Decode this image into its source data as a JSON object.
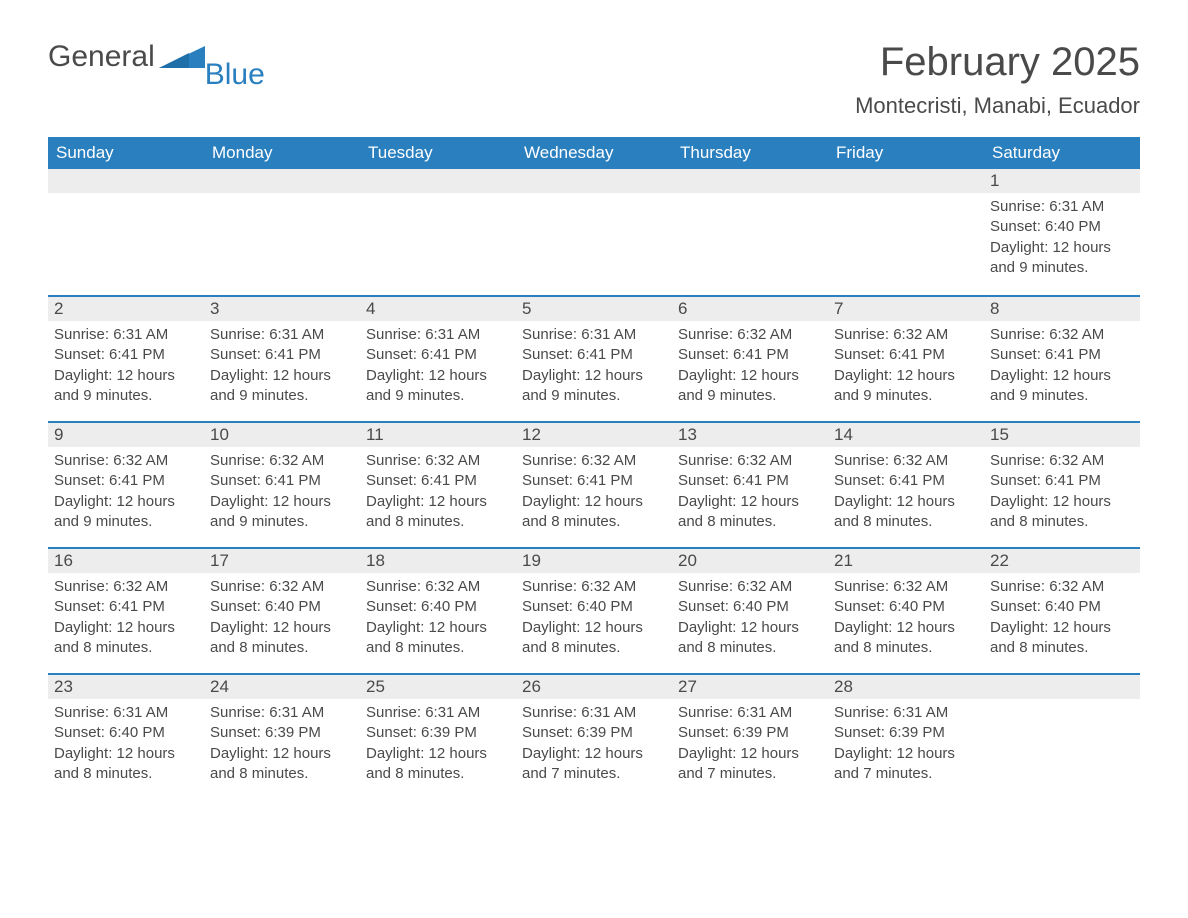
{
  "brand": {
    "part1": "General",
    "part2": "Blue"
  },
  "title": "February 2025",
  "location": "Montecristi, Manabi, Ecuador",
  "colors": {
    "header_bg": "#2a7fbf",
    "header_text": "#ffffff",
    "daybar_bg": "#ededed",
    "border": "#2a7fbf",
    "body_text": "#4a4a4a",
    "brand_gray": "#4a4a4a",
    "brand_blue": "#2a7fbf",
    "page_bg": "#ffffff"
  },
  "typography": {
    "title_fontsize": 40,
    "location_fontsize": 22,
    "dayheader_fontsize": 17,
    "cell_fontsize": 15,
    "logo_fontsize": 30
  },
  "labels": {
    "sunrise": "Sunrise:",
    "sunset": "Sunset:",
    "daylight": "Daylight:"
  },
  "day_names": [
    "Sunday",
    "Monday",
    "Tuesday",
    "Wednesday",
    "Thursday",
    "Friday",
    "Saturday"
  ],
  "weeks": [
    [
      null,
      null,
      null,
      null,
      null,
      null,
      {
        "day": "1",
        "sunrise": "6:31 AM",
        "sunset": "6:40 PM",
        "daylight_l1": "12 hours",
        "daylight_l2": "and 9 minutes."
      }
    ],
    [
      {
        "day": "2",
        "sunrise": "6:31 AM",
        "sunset": "6:41 PM",
        "daylight_l1": "12 hours",
        "daylight_l2": "and 9 minutes."
      },
      {
        "day": "3",
        "sunrise": "6:31 AM",
        "sunset": "6:41 PM",
        "daylight_l1": "12 hours",
        "daylight_l2": "and 9 minutes."
      },
      {
        "day": "4",
        "sunrise": "6:31 AM",
        "sunset": "6:41 PM",
        "daylight_l1": "12 hours",
        "daylight_l2": "and 9 minutes."
      },
      {
        "day": "5",
        "sunrise": "6:31 AM",
        "sunset": "6:41 PM",
        "daylight_l1": "12 hours",
        "daylight_l2": "and 9 minutes."
      },
      {
        "day": "6",
        "sunrise": "6:32 AM",
        "sunset": "6:41 PM",
        "daylight_l1": "12 hours",
        "daylight_l2": "and 9 minutes."
      },
      {
        "day": "7",
        "sunrise": "6:32 AM",
        "sunset": "6:41 PM",
        "daylight_l1": "12 hours",
        "daylight_l2": "and 9 minutes."
      },
      {
        "day": "8",
        "sunrise": "6:32 AM",
        "sunset": "6:41 PM",
        "daylight_l1": "12 hours",
        "daylight_l2": "and 9 minutes."
      }
    ],
    [
      {
        "day": "9",
        "sunrise": "6:32 AM",
        "sunset": "6:41 PM",
        "daylight_l1": "12 hours",
        "daylight_l2": "and 9 minutes."
      },
      {
        "day": "10",
        "sunrise": "6:32 AM",
        "sunset": "6:41 PM",
        "daylight_l1": "12 hours",
        "daylight_l2": "and 9 minutes."
      },
      {
        "day": "11",
        "sunrise": "6:32 AM",
        "sunset": "6:41 PM",
        "daylight_l1": "12 hours",
        "daylight_l2": "and 8 minutes."
      },
      {
        "day": "12",
        "sunrise": "6:32 AM",
        "sunset": "6:41 PM",
        "daylight_l1": "12 hours",
        "daylight_l2": "and 8 minutes."
      },
      {
        "day": "13",
        "sunrise": "6:32 AM",
        "sunset": "6:41 PM",
        "daylight_l1": "12 hours",
        "daylight_l2": "and 8 minutes."
      },
      {
        "day": "14",
        "sunrise": "6:32 AM",
        "sunset": "6:41 PM",
        "daylight_l1": "12 hours",
        "daylight_l2": "and 8 minutes."
      },
      {
        "day": "15",
        "sunrise": "6:32 AM",
        "sunset": "6:41 PM",
        "daylight_l1": "12 hours",
        "daylight_l2": "and 8 minutes."
      }
    ],
    [
      {
        "day": "16",
        "sunrise": "6:32 AM",
        "sunset": "6:41 PM",
        "daylight_l1": "12 hours",
        "daylight_l2": "and 8 minutes."
      },
      {
        "day": "17",
        "sunrise": "6:32 AM",
        "sunset": "6:40 PM",
        "daylight_l1": "12 hours",
        "daylight_l2": "and 8 minutes."
      },
      {
        "day": "18",
        "sunrise": "6:32 AM",
        "sunset": "6:40 PM",
        "daylight_l1": "12 hours",
        "daylight_l2": "and 8 minutes."
      },
      {
        "day": "19",
        "sunrise": "6:32 AM",
        "sunset": "6:40 PM",
        "daylight_l1": "12 hours",
        "daylight_l2": "and 8 minutes."
      },
      {
        "day": "20",
        "sunrise": "6:32 AM",
        "sunset": "6:40 PM",
        "daylight_l1": "12 hours",
        "daylight_l2": "and 8 minutes."
      },
      {
        "day": "21",
        "sunrise": "6:32 AM",
        "sunset": "6:40 PM",
        "daylight_l1": "12 hours",
        "daylight_l2": "and 8 minutes."
      },
      {
        "day": "22",
        "sunrise": "6:32 AM",
        "sunset": "6:40 PM",
        "daylight_l1": "12 hours",
        "daylight_l2": "and 8 minutes."
      }
    ],
    [
      {
        "day": "23",
        "sunrise": "6:31 AM",
        "sunset": "6:40 PM",
        "daylight_l1": "12 hours",
        "daylight_l2": "and 8 minutes."
      },
      {
        "day": "24",
        "sunrise": "6:31 AM",
        "sunset": "6:39 PM",
        "daylight_l1": "12 hours",
        "daylight_l2": "and 8 minutes."
      },
      {
        "day": "25",
        "sunrise": "6:31 AM",
        "sunset": "6:39 PM",
        "daylight_l1": "12 hours",
        "daylight_l2": "and 8 minutes."
      },
      {
        "day": "26",
        "sunrise": "6:31 AM",
        "sunset": "6:39 PM",
        "daylight_l1": "12 hours",
        "daylight_l2": "and 7 minutes."
      },
      {
        "day": "27",
        "sunrise": "6:31 AM",
        "sunset": "6:39 PM",
        "daylight_l1": "12 hours",
        "daylight_l2": "and 7 minutes."
      },
      {
        "day": "28",
        "sunrise": "6:31 AM",
        "sunset": "6:39 PM",
        "daylight_l1": "12 hours",
        "daylight_l2": "and 7 minutes."
      },
      null
    ]
  ]
}
